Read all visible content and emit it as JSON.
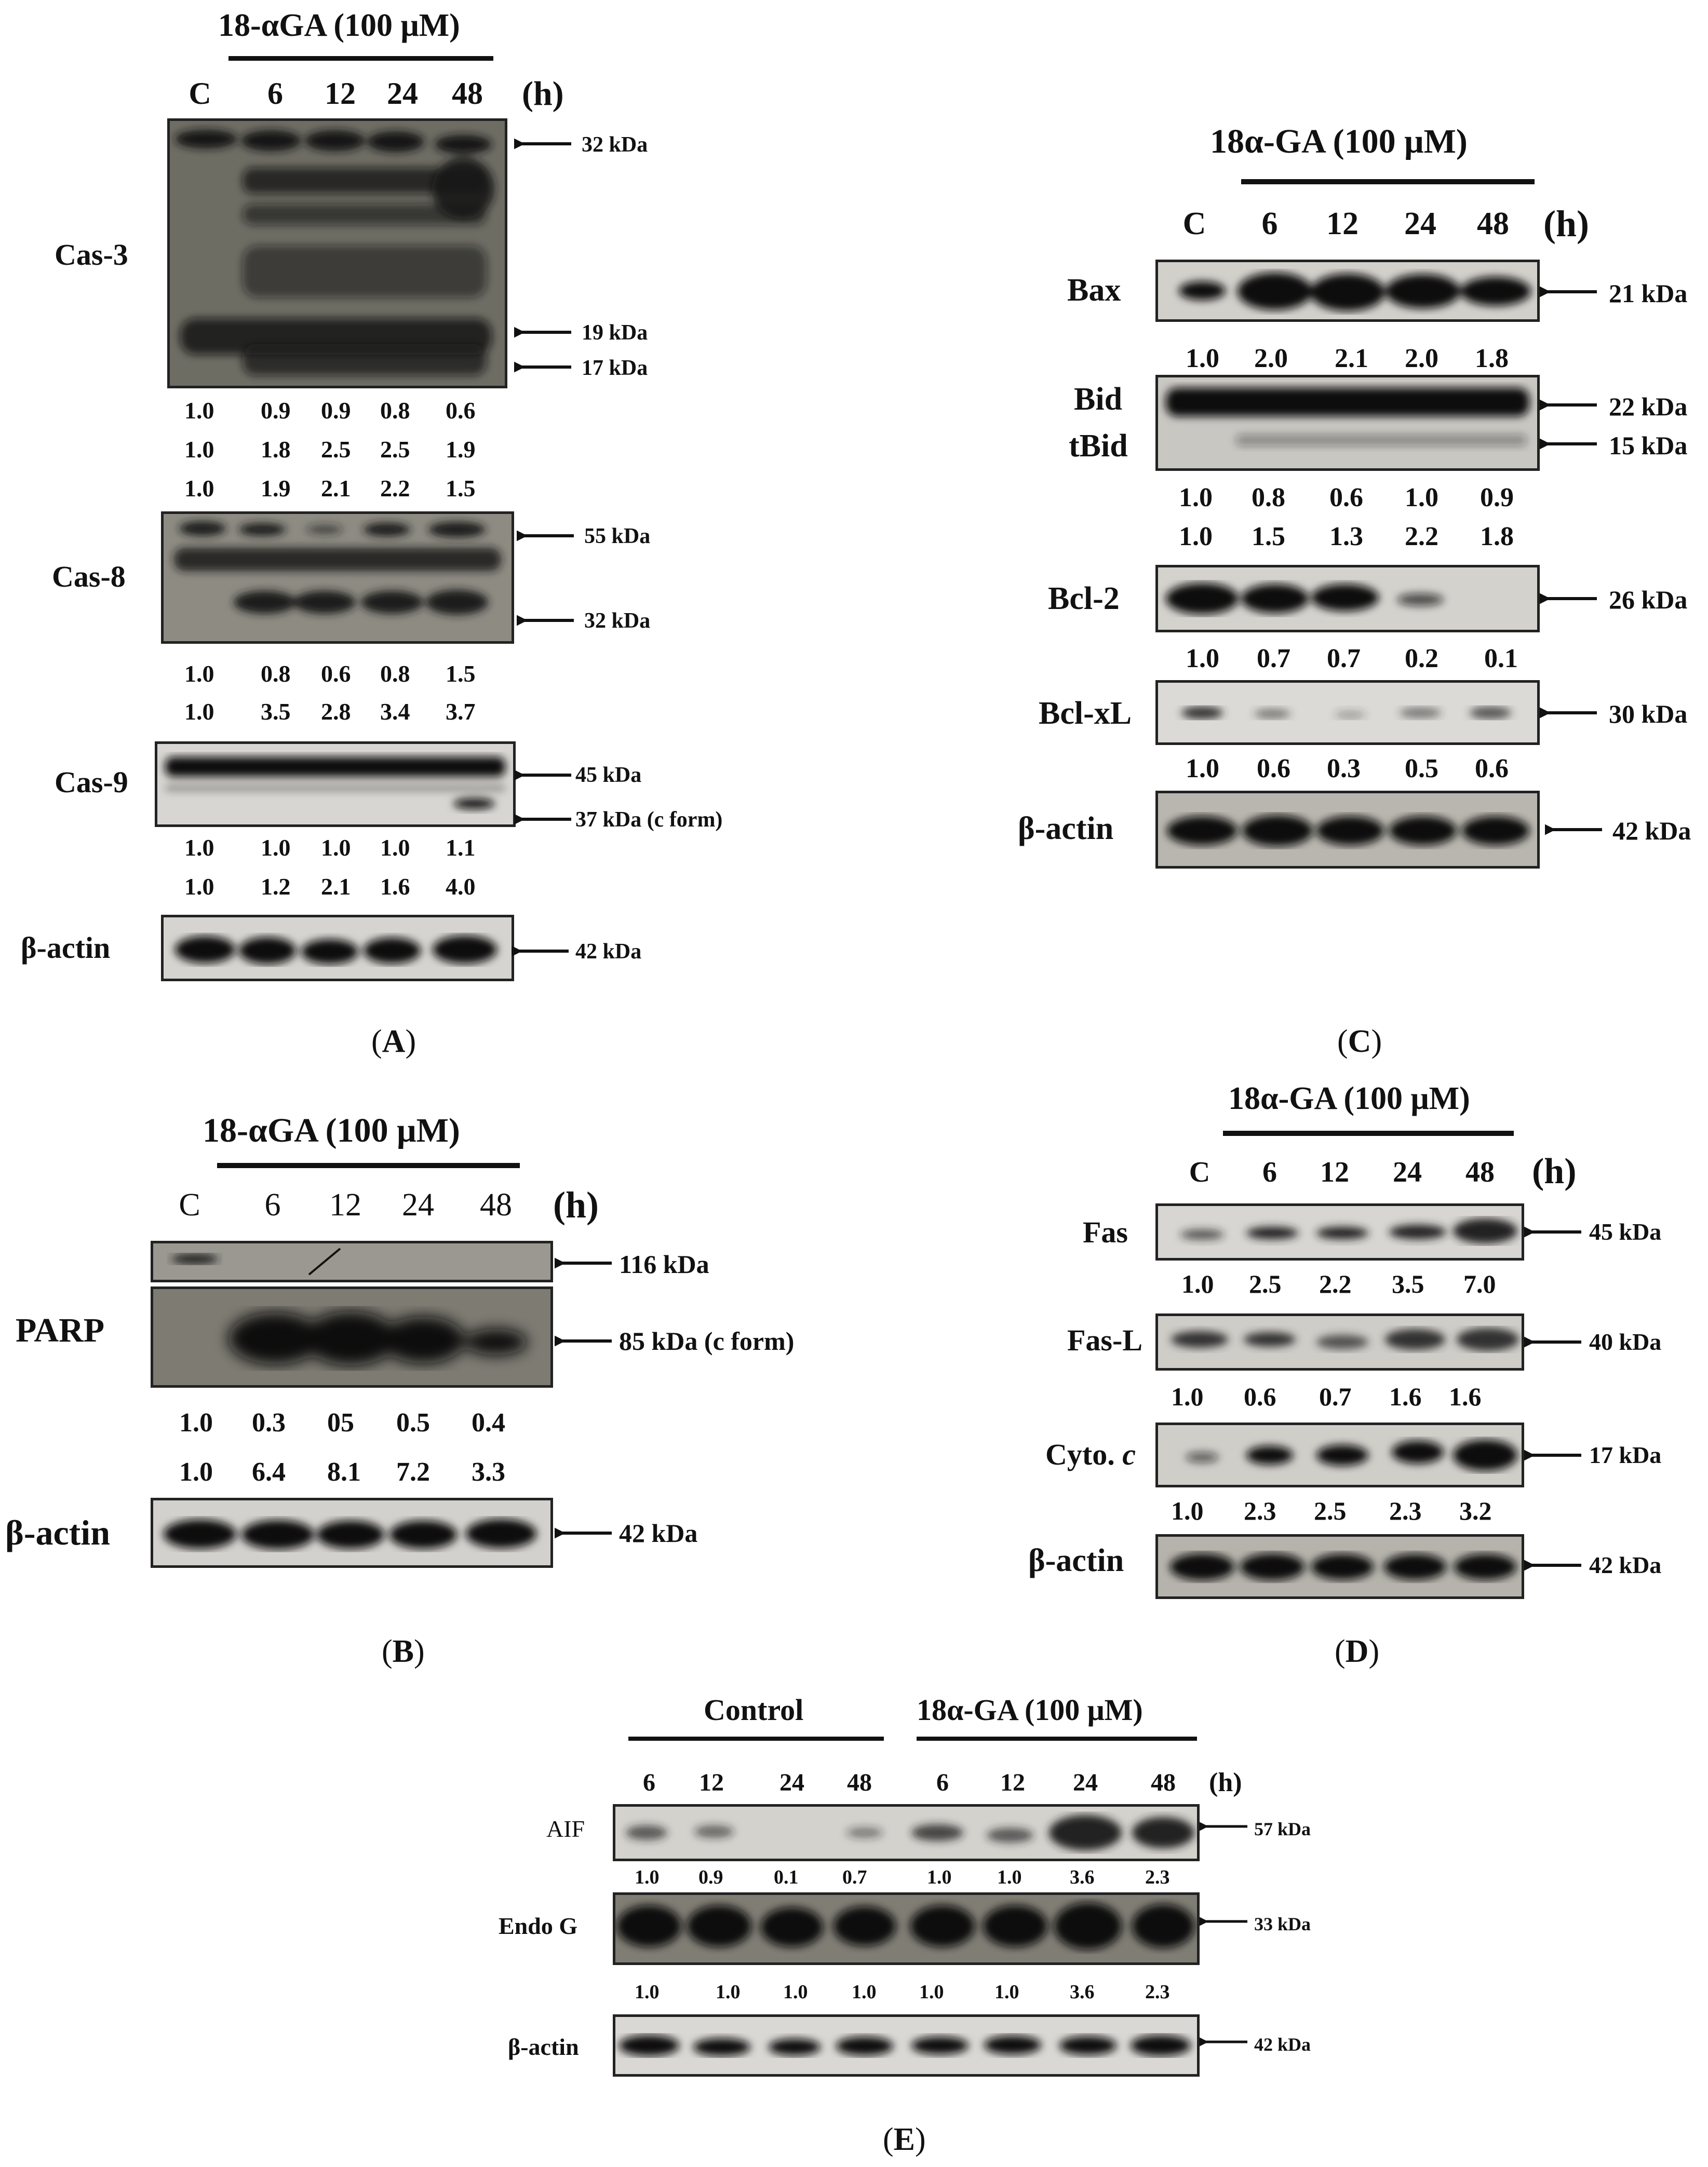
{
  "panelA": {
    "treatment": "18-αGA (100 μM)",
    "lanes": [
      "C",
      "6",
      "12",
      "24",
      "48"
    ],
    "unit": "(h)",
    "cas3": {
      "label": "Cas-3",
      "kda": [
        "32 kDa",
        "19 kDa",
        "17 kDa"
      ],
      "rows": [
        [
          "1.0",
          "0.9",
          "0.9",
          "0.8",
          "0.6"
        ],
        [
          "1.0",
          "1.8",
          "2.5",
          "2.5",
          "1.9"
        ],
        [
          "1.0",
          "1.9",
          "2.1",
          "2.2",
          "1.5"
        ]
      ]
    },
    "cas8": {
      "label": "Cas-8",
      "kda": [
        "55 kDa",
        "32 kDa"
      ],
      "rows": [
        [
          "1.0",
          "0.8",
          "0.6",
          "0.8",
          "1.5"
        ],
        [
          "1.0",
          "3.5",
          "2.8",
          "3.4",
          "3.7"
        ]
      ]
    },
    "cas9": {
      "label": "Cas-9",
      "kda": [
        "45 kDa",
        "37 kDa (c form)"
      ],
      "rows": [
        [
          "1.0",
          "1.0",
          "1.0",
          "1.0",
          "1.1"
        ],
        [
          "1.0",
          "1.2",
          "2.1",
          "1.6",
          "4.0"
        ]
      ]
    },
    "actin": {
      "label": "β-actin",
      "kda": "42 kDa"
    },
    "caption_letter": "A"
  },
  "panelB": {
    "treatment": "18-αGA (100 μM)",
    "lanes": [
      "C",
      "6",
      "12",
      "24",
      "48"
    ],
    "unit": "(h)",
    "parp": {
      "label": "PARP",
      "kda": [
        "116 kDa",
        "85 kDa (c form)"
      ],
      "rows": [
        [
          "1.0",
          "0.3",
          "05",
          "0.5",
          "0.4"
        ],
        [
          "1.0",
          "6.4",
          "8.1",
          "7.2",
          "3.3"
        ]
      ]
    },
    "actin": {
      "label": "β-actin",
      "kda": "42 kDa"
    },
    "caption_letter": "B"
  },
  "panelC": {
    "treatment": "18α-GA (100 μM)",
    "lanes": [
      "C",
      "6",
      "12",
      "24",
      "48"
    ],
    "unit": "(h)",
    "bax": {
      "label": "Bax",
      "kda": "21 kDa",
      "rows": [
        [
          "1.0",
          "2.0",
          "2.1",
          "2.0",
          "1.8"
        ]
      ]
    },
    "bid": {
      "label": "Bid",
      "label2": "tBid",
      "kda": [
        "22 kDa",
        "15 kDa"
      ],
      "rows": [
        [
          "1.0",
          "0.8",
          "0.6",
          "1.0",
          "0.9"
        ],
        [
          "1.0",
          "1.5",
          "1.3",
          "2.2",
          "1.8"
        ]
      ]
    },
    "bcl2": {
      "label": "Bcl-2",
      "kda": "26 kDa",
      "rows": [
        [
          "1.0",
          "0.7",
          "0.7",
          "0.2",
          "0.1"
        ]
      ]
    },
    "bclxl": {
      "label": "Bcl-xL",
      "kda": "30 kDa",
      "rows": [
        [
          "1.0",
          "0.6",
          "0.3",
          "0.5",
          "0.6"
        ]
      ]
    },
    "actin": {
      "label": "β-actin",
      "kda": "42 kDa"
    },
    "caption_letter": "C"
  },
  "panelD": {
    "treatment": "18α-GA (100 μM)",
    "lanes": [
      "C",
      "6",
      "12",
      "24",
      "48"
    ],
    "unit": "(h)",
    "fas": {
      "label": "Fas",
      "kda": "45 kDa",
      "rows": [
        [
          "1.0",
          "2.5",
          "2.2",
          "3.5",
          "7.0"
        ]
      ]
    },
    "fasl": {
      "label": "Fas-L",
      "kda": "40 kDa",
      "rows": [
        [
          "1.0",
          "0.6",
          "0.7",
          "1.6",
          "1.6"
        ]
      ]
    },
    "cyto": {
      "label": "Cyto.",
      "label_italic": "c",
      "kda": "17 kDa",
      "rows": [
        [
          "1.0",
          "2.3",
          "2.5",
          "2.3",
          "3.2"
        ]
      ]
    },
    "actin": {
      "label": "β-actin",
      "kda": "42 kDa"
    },
    "caption_letter": "D"
  },
  "panelE": {
    "group1": "Control",
    "group2": "18α-GA (100 μM)",
    "lanes": [
      "6",
      "12",
      "24",
      "48",
      "6",
      "12",
      "24",
      "48"
    ],
    "unit": "(h)",
    "aif": {
      "label": "AIF",
      "kda": "57 kDa",
      "rows": [
        [
          "1.0",
          "0.9",
          "0.1",
          "0.7",
          "1.0",
          "1.0",
          "3.6",
          "2.3"
        ]
      ]
    },
    "endog": {
      "label": "Endo G",
      "kda": "33 kDa",
      "rows": [
        [
          "1.0",
          "1.0",
          "1.0",
          "1.0",
          "1.0",
          "1.0",
          "3.6",
          "2.3"
        ]
      ]
    },
    "actin": {
      "label": "β-actin",
      "kda": "42 kDa"
    },
    "caption_letter": "E"
  }
}
